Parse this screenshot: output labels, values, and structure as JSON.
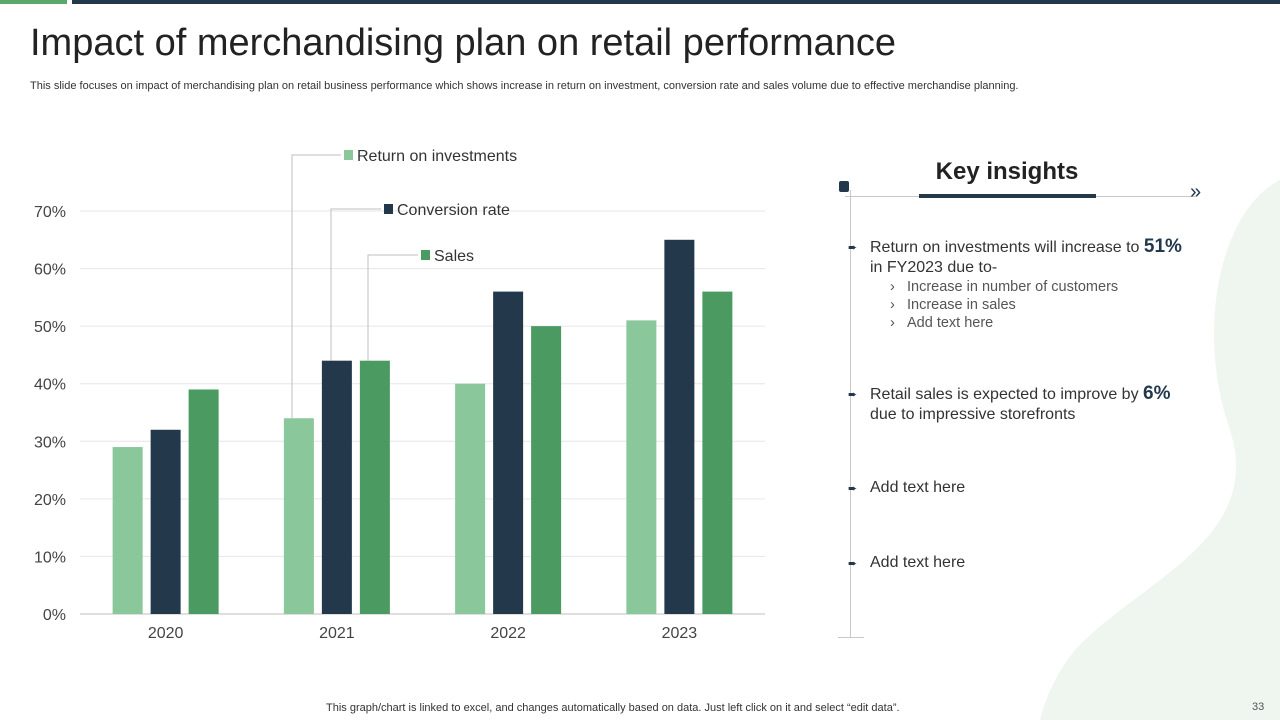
{
  "title": "Impact of merchandising plan on retail performance",
  "subtitle": "This slide focuses on impact of merchandising plan on retail business performance which shows increase in return on investment, conversion rate and sales volume due to effective  merchandise planning.",
  "chart_data": {
    "type": "bar",
    "categories": [
      "2020",
      "2021",
      "2022",
      "2023"
    ],
    "series": [
      {
        "name": "Return  on investments",
        "values": [
          29,
          34,
          40,
          51
        ],
        "color": "#8ac79b"
      },
      {
        "name": "Conversion rate",
        "values": [
          32,
          44,
          56,
          65
        ],
        "color": "#24384c"
      },
      {
        "name": "Sales",
        "values": [
          39,
          44,
          50,
          56
        ],
        "color": "#4a9a62"
      }
    ],
    "ylim": [
      0,
      70
    ],
    "yticks": [
      "0%",
      "10%",
      "20%",
      "30%",
      "40%",
      "50%",
      "60%",
      "70%"
    ],
    "grid": true,
    "xlabel": "",
    "ylabel": ""
  },
  "insights": {
    "title": "Key insights",
    "items": [
      {
        "pre": "Return  on investments  will increase to ",
        "highlight": "51%",
        "post": "in FY2023 due to-"
      },
      {
        "pre": "Retail sales is expected to improve by ",
        "highlight": "6%",
        "post": "due to impressive storefronts"
      },
      {
        "pre": "Add text here"
      },
      {
        "pre": "Add text here"
      }
    ],
    "subitems": [
      "Increase in number of customers",
      "Increase in sales",
      "Add text here"
    ]
  },
  "icons": {
    "bullet": "arrow-bullet-icon",
    "chevron": "double-chevron-right-icon",
    "subitem": "chevron-right-icon"
  },
  "footer_note": "This graph/chart is linked to excel,  and changes automatically based on data. Just left click on it and select “edit data”.",
  "page_number": "33"
}
